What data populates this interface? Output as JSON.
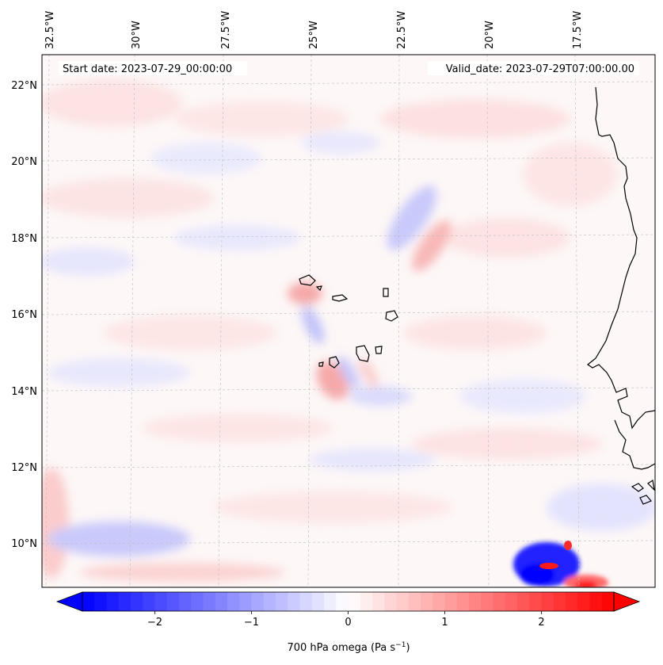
{
  "header": {
    "start_date_text": "Start date: 2023-07-29_00:00:00",
    "valid_date_text": "Valid_date: 2023-07-29T07:00:00.00"
  },
  "lon_labels": [
    "32.5°W",
    "30°W",
    "27.5°W",
    "25°W",
    "22.5°W",
    "20°W",
    "17.5°W"
  ],
  "lat_labels": [
    "22°N",
    "20°N",
    "18°N",
    "16°N",
    "14°N",
    "12°N",
    "10°N"
  ],
  "colorbar": {
    "ticks": [
      -2,
      -1,
      0,
      1,
      2
    ],
    "tick_labels": [
      "−2",
      "−1",
      "0",
      "1",
      "2"
    ],
    "vmin": -2.75,
    "vmax": 2.75,
    "label_main": "700 hPa omega (Pa s",
    "label_sup": "−1",
    "label_end": ")",
    "color_negative": "#0000ff",
    "color_zero": "#ffffff",
    "color_positive": "#ff0000"
  },
  "chart_data": {
    "type": "heatmap",
    "variable": "700 hPa omega",
    "units": "Pa s−1",
    "lon_range": [
      -33.0,
      -15.0
    ],
    "lat_range": [
      8.9,
      22.8
    ],
    "color_range": [
      -2.75,
      2.75
    ],
    "colormap": "bwr",
    "grid": true
  }
}
